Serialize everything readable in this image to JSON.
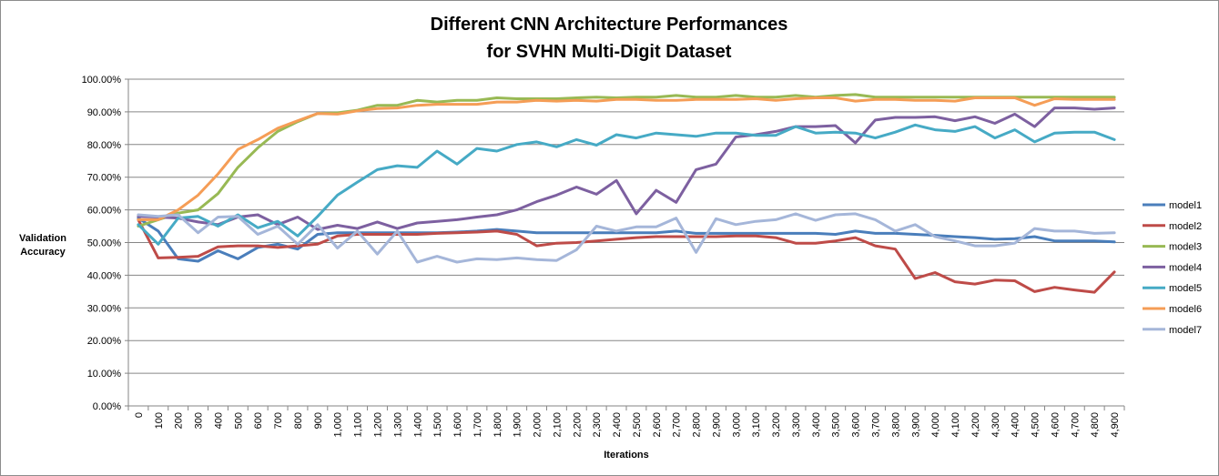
{
  "chart_data": {
    "type": "line",
    "title_line1": "Different CNN Architecture Performances",
    "title_line2": "for SVHN Multi-Digit Dataset",
    "xlabel": "Iterations",
    "ylabel_line1": "Validation",
    "ylabel_line2": "Accuracy",
    "ylim": [
      0,
      100
    ],
    "y_ticks": [
      "0.00%",
      "10.00%",
      "20.00%",
      "30.00%",
      "40.00%",
      "50.00%",
      "60.00%",
      "70.00%",
      "80.00%",
      "90.00%",
      "100.00%"
    ],
    "x": [
      "0",
      "100",
      "200",
      "300",
      "400",
      "500",
      "600",
      "700",
      "800",
      "900",
      "1,000",
      "1,100",
      "1,200",
      "1,300",
      "1,400",
      "1,500",
      "1,600",
      "1,700",
      "1,800",
      "1,900",
      "2,000",
      "2,100",
      "2,200",
      "2,300",
      "2,400",
      "2,500",
      "2,600",
      "2,700",
      "2,800",
      "2,900",
      "3,000",
      "3,100",
      "3,200",
      "3,300",
      "3,400",
      "3,500",
      "3,600",
      "3,700",
      "3,800",
      "3,900",
      "4,000",
      "4,100",
      "4,200",
      "4,300",
      "4,400",
      "4,500",
      "4,600",
      "4,700",
      "4,800",
      "4,900"
    ],
    "grid": "horizontal",
    "legend_position": "right",
    "series": [
      {
        "name": "model1",
        "color": "#4a7ebb",
        "values": [
          57.5,
          53.5,
          45,
          44.3,
          47.5,
          45,
          48.5,
          49.5,
          48,
          52.5,
          53,
          53,
          53,
          53,
          53,
          53,
          53.2,
          53.5,
          54,
          53.5,
          53,
          53,
          53,
          53,
          53,
          53,
          53,
          53.5,
          52.8,
          52.8,
          52.8,
          52.8,
          52.8,
          52.8,
          52.8,
          52.5,
          53.5,
          52.8,
          52.8,
          52.5,
          52.2,
          51.8,
          51.5,
          51,
          51.2,
          51.8,
          50.5,
          50.5,
          50.5,
          50.2
        ]
      },
      {
        "name": "model2",
        "color": "#be4b48",
        "values": [
          57,
          45.3,
          45.5,
          45.8,
          48.7,
          49,
          49,
          48.5,
          49,
          49.5,
          52,
          52.5,
          52.5,
          52.5,
          52.5,
          52.8,
          53,
          53.2,
          53.5,
          52.5,
          49,
          49.8,
          50,
          50.5,
          51,
          51.5,
          51.8,
          51.8,
          51.8,
          51.8,
          52,
          52,
          51.5,
          49.8,
          49.8,
          50.5,
          51.5,
          49,
          48,
          39,
          40.8,
          38,
          37.3,
          38.5,
          38.3,
          35,
          36.3,
          35.5,
          34.8,
          41
        ]
      },
      {
        "name": "model3",
        "color": "#98b954",
        "values": [
          55,
          57,
          59,
          60,
          65,
          73,
          79,
          84,
          87,
          89.5,
          89.7,
          90.5,
          92,
          92,
          93.5,
          93,
          93.5,
          93.5,
          94.3,
          94,
          94,
          94,
          94.3,
          94.5,
          94.3,
          94.5,
          94.5,
          95,
          94.5,
          94.5,
          95,
          94.5,
          94.5,
          95,
          94.5,
          95,
          95.3,
          94.5,
          94.5,
          94.5,
          94.5,
          94.5,
          94.5,
          94.5,
          94.5,
          94.5,
          94.5,
          94.5,
          94.5,
          94.5
        ]
      },
      {
        "name": "model4",
        "color": "#7d60a0",
        "values": [
          58,
          57.8,
          57.5,
          56.3,
          55.5,
          57.8,
          58.5,
          55.5,
          57.8,
          54,
          55.3,
          54.3,
          56.3,
          54.3,
          56,
          56.5,
          57,
          57.8,
          58.5,
          60,
          62.5,
          64.5,
          67,
          64.8,
          69,
          58.8,
          66,
          62.3,
          72.3,
          74,
          82.3,
          83,
          84,
          85.5,
          85.5,
          85.8,
          80.5,
          87.5,
          88.3,
          88.3,
          88.5,
          87.3,
          88.5,
          86.5,
          89.3,
          85.5,
          91.2,
          91.2,
          90.8,
          91.2
        ]
      },
      {
        "name": "model5",
        "color": "#46aac5",
        "values": [
          55.5,
          49.5,
          57.5,
          58,
          55,
          58.5,
          54.5,
          56.5,
          52,
          58,
          64.5,
          68.5,
          72.3,
          73.5,
          73,
          78,
          74,
          78.8,
          78,
          80,
          80.8,
          79.3,
          81.5,
          79.8,
          83,
          82,
          83.5,
          83,
          82.5,
          83.5,
          83.5,
          82.8,
          82.8,
          85.5,
          83.5,
          83.8,
          83.5,
          82,
          83.8,
          86,
          84.5,
          84,
          85.5,
          82,
          84.5,
          80.8,
          83.5,
          83.8,
          83.8,
          81.5
        ]
      },
      {
        "name": "model6",
        "color": "#f59d56",
        "values": [
          57,
          57,
          60,
          64.5,
          71,
          78.5,
          81.5,
          85,
          87.3,
          89.5,
          89.3,
          90.3,
          91,
          91.2,
          92,
          92.3,
          92.3,
          92.3,
          93,
          93,
          93.5,
          93.3,
          93.5,
          93.3,
          93.8,
          93.8,
          93.5,
          93.5,
          93.8,
          93.8,
          93.8,
          94,
          93.5,
          94,
          94.3,
          94.3,
          93.3,
          93.8,
          93.8,
          93.5,
          93.5,
          93.3,
          94.3,
          94.3,
          94.3,
          92,
          94,
          93.8,
          93.8,
          93.8
        ]
      },
      {
        "name": "model7",
        "color": "#a5b6d9",
        "values": [
          58.5,
          58,
          58.5,
          53,
          57.8,
          58,
          52.5,
          55,
          49.5,
          55.5,
          48.3,
          53.5,
          46.5,
          53.5,
          44,
          45.8,
          44,
          45,
          44.8,
          45.3,
          44.8,
          44.5,
          47.8,
          55,
          53.5,
          54.8,
          54.8,
          57.5,
          47,
          57.3,
          55.5,
          56.5,
          57,
          58.8,
          56.8,
          58.5,
          58.8,
          57,
          53.5,
          55.5,
          51.8,
          50.5,
          49,
          49,
          49.8,
          54.3,
          53.5,
          53.5,
          52.8,
          53
        ]
      }
    ]
  }
}
